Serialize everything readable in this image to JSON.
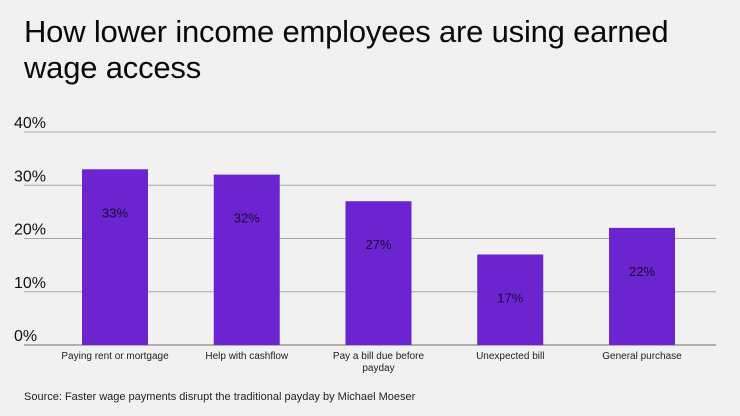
{
  "chart_data": {
    "type": "bar",
    "title": "How lower income employees are using earned wage access",
    "categories": [
      "Paying rent or mortgage",
      "Help with cashflow",
      "Pay a bill due before payday",
      "Unexpected bill",
      "General purchase"
    ],
    "values": [
      33,
      32,
      27,
      17,
      22
    ],
    "data_labels": [
      "33%",
      "32%",
      "27%",
      "17%",
      "22%"
    ],
    "yticks": [
      "0%",
      "10%",
      "20%",
      "30%",
      "40%"
    ],
    "ylim": [
      0,
      40
    ],
    "xlabel": "",
    "ylabel": "",
    "grid": true,
    "bar_color": "#6c24d0",
    "source": "Source: Faster wage payments disrupt the traditional payday by Michael Moeser"
  }
}
